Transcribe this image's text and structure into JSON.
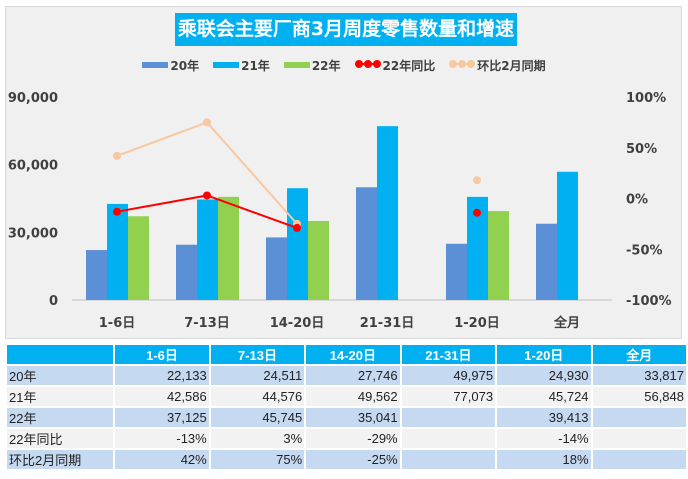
{
  "chart_data": {
    "type": "bar+line",
    "title": "乘联会主要厂商3月周度零售数量和增速",
    "categories": [
      "1-6日",
      "7-13日",
      "14-20日",
      "21-31日",
      "1-20日",
      "全月"
    ],
    "series": [
      {
        "name": "20年",
        "type": "bar",
        "color": "#5b8fd6",
        "values": [
          22133,
          24511,
          27746,
          49975,
          24930,
          33817
        ]
      },
      {
        "name": "21年",
        "type": "bar",
        "color": "#00b0f0",
        "values": [
          42586,
          44576,
          49562,
          77073,
          45724,
          56848
        ]
      },
      {
        "name": "22年",
        "type": "bar",
        "color": "#92d050",
        "values": [
          37125,
          45745,
          35041,
          null,
          39413,
          null
        ]
      },
      {
        "name": "22年同比",
        "type": "line",
        "axis": "right",
        "color": "#ff0000",
        "values": [
          -13,
          3,
          -29,
          null,
          -14,
          null
        ]
      },
      {
        "name": "环比2月同期",
        "type": "line",
        "axis": "right",
        "color": "#f8c89f",
        "values": [
          42,
          75,
          -25,
          null,
          18,
          null
        ]
      }
    ],
    "left_axis": {
      "ticks": [
        "0",
        "30,000",
        "60,000",
        "90,000"
      ],
      "ylim": [
        0,
        90000
      ]
    },
    "right_axis": {
      "ticks": [
        "-100%",
        "-50%",
        "0%",
        "50%",
        "100%"
      ],
      "ylim": [
        -100,
        100
      ]
    },
    "legend": "top",
    "grid": false
  },
  "table": {
    "header": [
      "",
      "1-6日",
      "7-13日",
      "14-20日",
      "21-31日",
      "1-20日",
      "全月"
    ],
    "rows": [
      [
        "20年",
        "22,133",
        "24,511",
        "27,746",
        "49,975",
        "24,930",
        "33,817"
      ],
      [
        "21年",
        "42,586",
        "44,576",
        "49,562",
        "77,073",
        "45,724",
        "56,848"
      ],
      [
        "22年",
        "37,125",
        "45,745",
        "35,041",
        "",
        "39,413",
        ""
      ],
      [
        "22年同比",
        "-13%",
        "3%",
        "-29%",
        "",
        "-14%",
        ""
      ],
      [
        "环比2月同期",
        "42%",
        "75%",
        "-25%",
        "",
        "18%",
        ""
      ]
    ]
  }
}
